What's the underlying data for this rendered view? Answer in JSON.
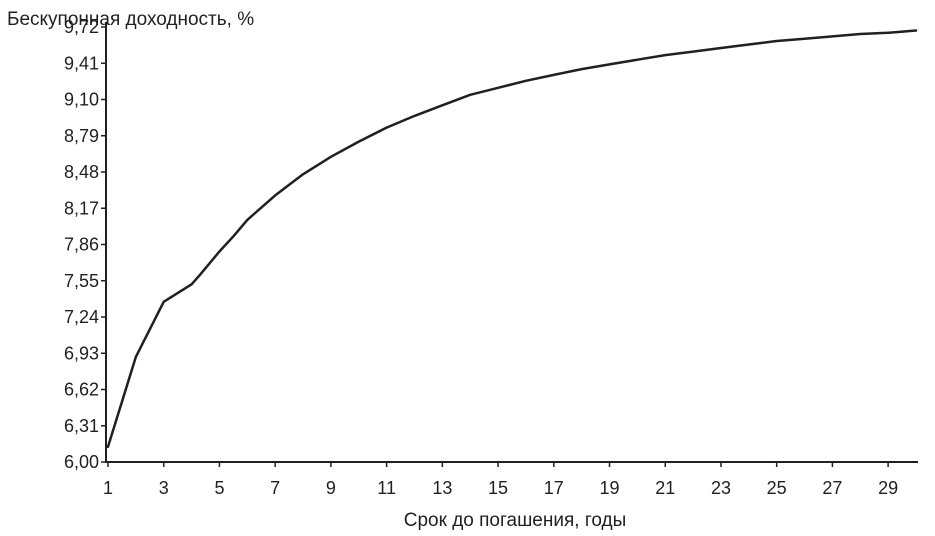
{
  "chart_data": {
    "type": "line",
    "title": "",
    "xlabel": "Срок до погашения, годы",
    "ylabel": "Бескупонная доходность, %",
    "x_ticks": [
      "1",
      "3",
      "5",
      "7",
      "9",
      "11",
      "13",
      "15",
      "17",
      "19",
      "21",
      "23",
      "25",
      "27",
      "29"
    ],
    "y_ticks": [
      "6,00",
      "6,31",
      "6,62",
      "6,93",
      "7,24",
      "7,55",
      "7,86",
      "8,17",
      "8,48",
      "8,79",
      "9,10",
      "9,41",
      "9,72"
    ],
    "xlim": [
      1,
      30
    ],
    "ylim": [
      6.0,
      9.72
    ],
    "grid": false,
    "line_color": "#231f20",
    "series": [
      {
        "name": "",
        "x": [
          1,
          2,
          3,
          4,
          4.3,
          5,
          5.5,
          6,
          7,
          8,
          9,
          10,
          11,
          12,
          13,
          14,
          15,
          16,
          17,
          18,
          19,
          20,
          21,
          22,
          23,
          24,
          25,
          26,
          27,
          28,
          29,
          30
        ],
        "y": [
          6.13,
          6.9,
          7.37,
          7.52,
          7.6,
          7.8,
          7.93,
          8.07,
          8.28,
          8.46,
          8.61,
          8.74,
          8.86,
          8.96,
          9.05,
          9.14,
          9.2,
          9.26,
          9.31,
          9.36,
          9.4,
          9.44,
          9.48,
          9.51,
          9.54,
          9.57,
          9.6,
          9.62,
          9.64,
          9.66,
          9.67,
          9.69
        ]
      }
    ]
  }
}
